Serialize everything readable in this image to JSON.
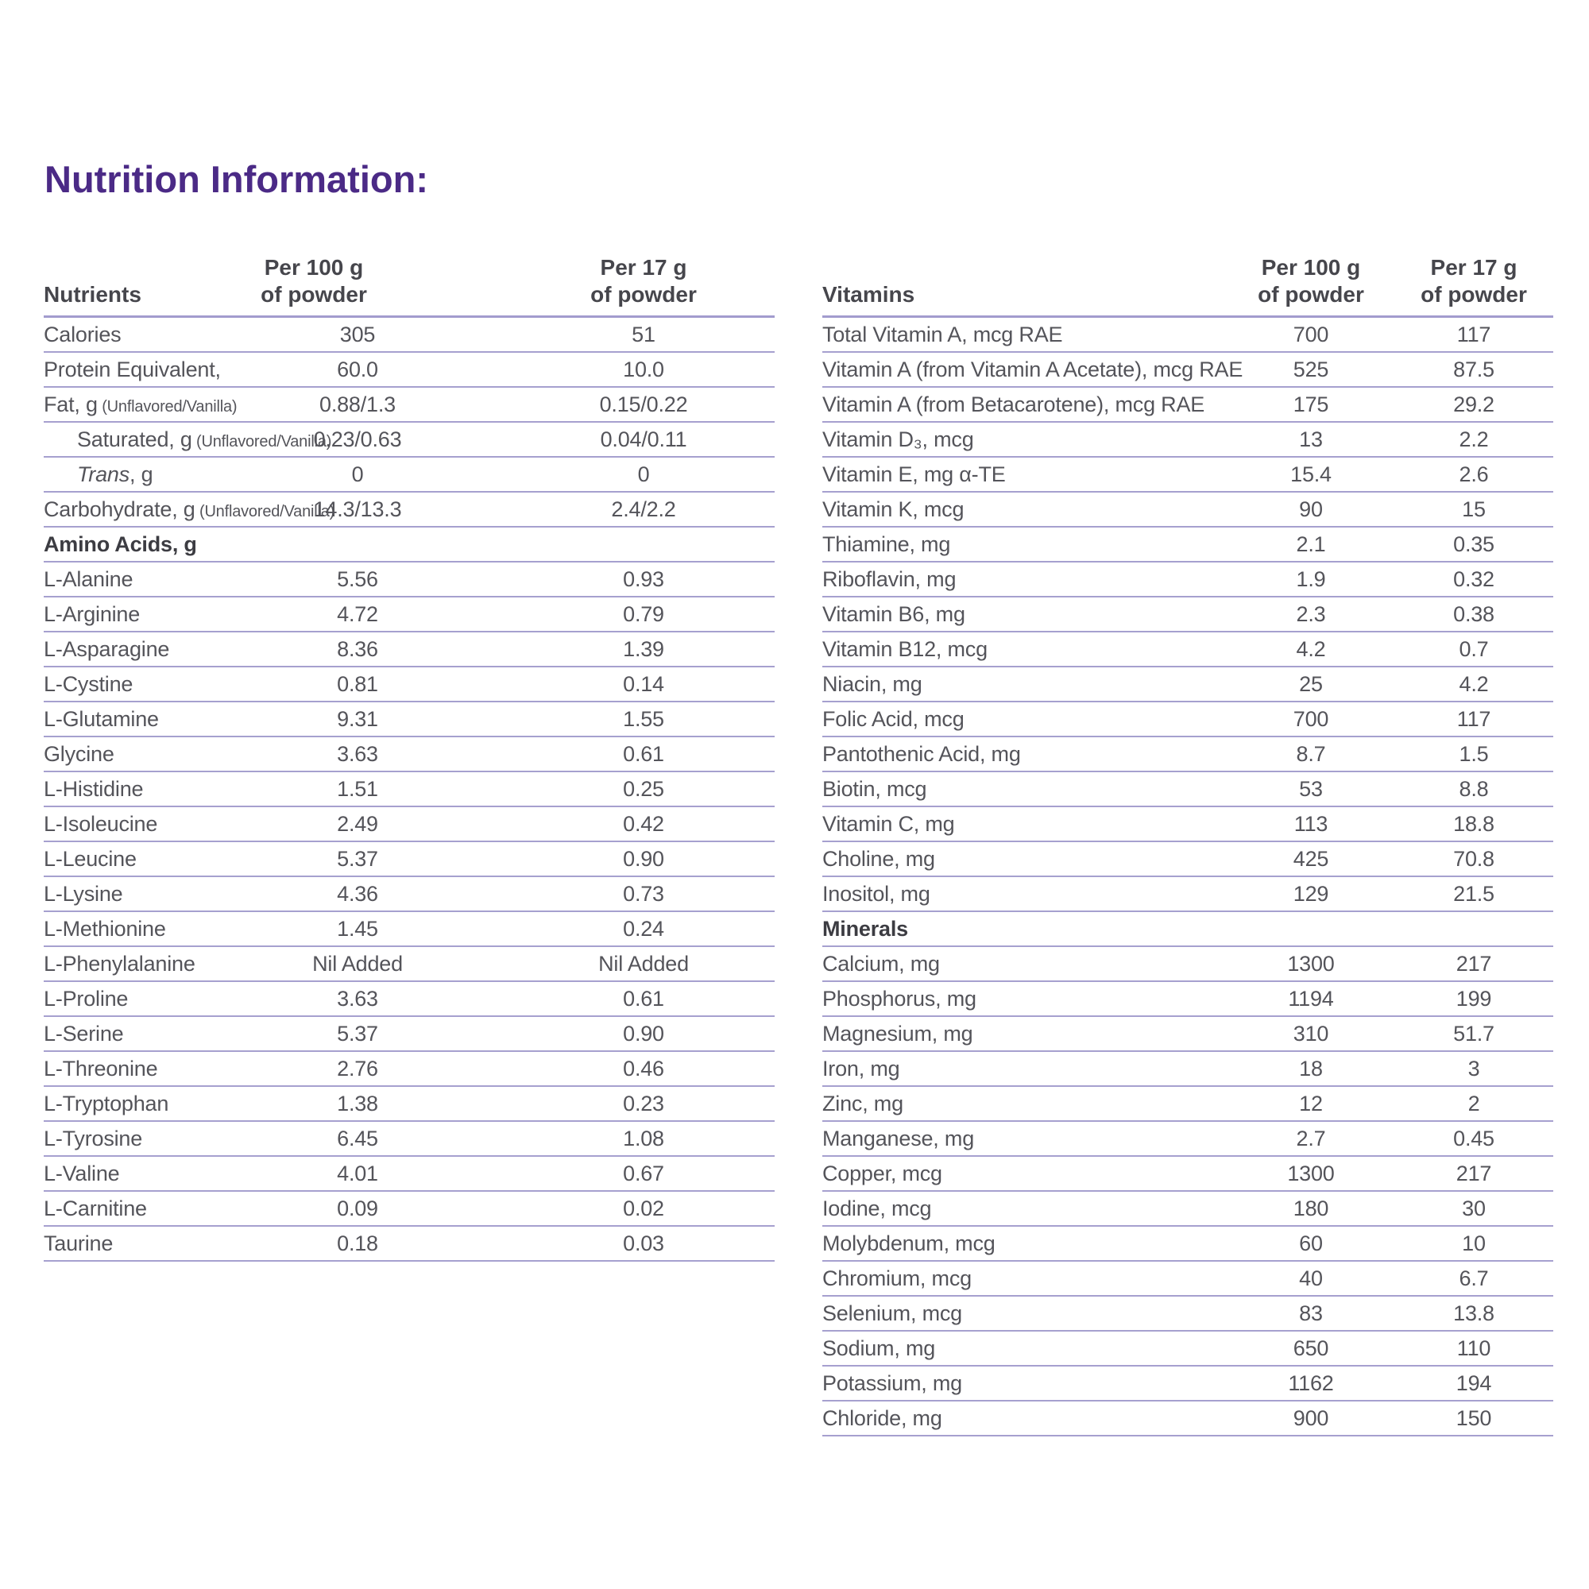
{
  "title": "Nutrition Information:",
  "colors": {
    "title_purple": "#4B2A86",
    "rule_lavender": "#A6A0CF",
    "body_text": "#54545A"
  },
  "columns": {
    "per100_line1": "Per 100 g",
    "per100_line2": "of powder",
    "per17_line1": "Per 17 g",
    "per17_line2": "of powder"
  },
  "left_table": {
    "header": "Nutrients",
    "rows": [
      {
        "label": "Calories",
        "v100": "305",
        "v17": "51"
      },
      {
        "label": "Protein Equivalent,",
        "v100": "60.0",
        "v17": "10.0"
      },
      {
        "label": "Fat, g",
        "note": "(Unflavored/Vanilla)",
        "v100": "0.88/1.3",
        "v17": "0.15/0.22"
      },
      {
        "label": "Saturated, g",
        "note": "(Unflavored/Vanilla)",
        "indent": true,
        "v100": "0.23/0.63",
        "v17": "0.04/0.11"
      },
      {
        "label_i": "Trans",
        "label": ", g",
        "indent": true,
        "v100": "0",
        "v17": "0"
      },
      {
        "label": "Carbohydrate, g",
        "note": "(Unflavored/Vanilla)",
        "v100": "14.3/13.3",
        "v17": "2.4/2.2"
      },
      {
        "type": "section",
        "label": "Amino Acids, g"
      },
      {
        "label": "L-Alanine",
        "v100": "5.56",
        "v17": "0.93"
      },
      {
        "label": "L-Arginine",
        "v100": "4.72",
        "v17": "0.79"
      },
      {
        "label": "L-Asparagine",
        "v100": "8.36",
        "v17": "1.39"
      },
      {
        "label": "L-Cystine",
        "v100": "0.81",
        "v17": "0.14"
      },
      {
        "label": "L-Glutamine",
        "v100": "9.31",
        "v17": "1.55"
      },
      {
        "label": "Glycine",
        "v100": "3.63",
        "v17": "0.61"
      },
      {
        "label": "L-Histidine",
        "v100": "1.51",
        "v17": "0.25"
      },
      {
        "label": "L-Isoleucine",
        "v100": "2.49",
        "v17": "0.42"
      },
      {
        "label": "L-Leucine",
        "v100": "5.37",
        "v17": "0.90"
      },
      {
        "label": "L-Lysine",
        "v100": "4.36",
        "v17": "0.73"
      },
      {
        "label": "L-Methionine",
        "v100": "1.45",
        "v17": "0.24"
      },
      {
        "label": "L-Phenylalanine",
        "v100": "Nil Added",
        "v17": "Nil Added"
      },
      {
        "label": "L-Proline",
        "v100": "3.63",
        "v17": "0.61"
      },
      {
        "label": "L-Serine",
        "v100": "5.37",
        "v17": "0.90"
      },
      {
        "label": "L-Threonine",
        "v100": "2.76",
        "v17": "0.46"
      },
      {
        "label": "L-Tryptophan",
        "v100": "1.38",
        "v17": "0.23"
      },
      {
        "label": "L-Tyrosine",
        "v100": "6.45",
        "v17": "1.08"
      },
      {
        "label": "L-Valine",
        "v100": "4.01",
        "v17": "0.67"
      },
      {
        "label": "L-Carnitine",
        "v100": "0.09",
        "v17": "0.02"
      },
      {
        "label": "Taurine",
        "v100": "0.18",
        "v17": "0.03"
      }
    ]
  },
  "right_table": {
    "header": "Vitamins",
    "rows": [
      {
        "label": "Total Vitamin A, mcg RAE",
        "v100": "700",
        "v17": "117"
      },
      {
        "label": "Vitamin A (from Vitamin A Acetate), mcg RAE",
        "v100": "525",
        "v17": "87.5"
      },
      {
        "label": "Vitamin A (from Betacarotene), mcg RAE",
        "v100": "175",
        "v17": "29.2"
      },
      {
        "label": "Vitamin D₃, mcg",
        "v100": "13",
        "v17": "2.2"
      },
      {
        "label": "Vitamin E, mg α-TE",
        "v100": "15.4",
        "v17": "2.6"
      },
      {
        "label": "Vitamin K, mcg",
        "v100": "90",
        "v17": "15"
      },
      {
        "label": "Thiamine, mg",
        "v100": "2.1",
        "v17": "0.35"
      },
      {
        "label": "Riboflavin, mg",
        "v100": "1.9",
        "v17": "0.32"
      },
      {
        "label": "Vitamin B6, mg",
        "v100": "2.3",
        "v17": "0.38"
      },
      {
        "label": "Vitamin B12, mcg",
        "v100": "4.2",
        "v17": "0.7"
      },
      {
        "label": "Niacin, mg",
        "v100": "25",
        "v17": "4.2"
      },
      {
        "label": "Folic Acid, mcg",
        "v100": "700",
        "v17": "117"
      },
      {
        "label": "Pantothenic Acid, mg",
        "v100": "8.7",
        "v17": "1.5"
      },
      {
        "label": "Biotin, mcg",
        "v100": "53",
        "v17": "8.8"
      },
      {
        "label": "Vitamin C, mg",
        "v100": "113",
        "v17": "18.8"
      },
      {
        "label": "Choline, mg",
        "v100": "425",
        "v17": "70.8"
      },
      {
        "label": "Inositol, mg",
        "v100": "129",
        "v17": "21.5"
      },
      {
        "type": "section",
        "label": "Minerals"
      },
      {
        "label": "Calcium, mg",
        "v100": "1300",
        "v17": "217"
      },
      {
        "label": "Phosphorus, mg",
        "v100": "1194",
        "v17": "199"
      },
      {
        "label": "Magnesium, mg",
        "v100": "310",
        "v17": "51.7"
      },
      {
        "label": "Iron, mg",
        "v100": "18",
        "v17": "3"
      },
      {
        "label": "Zinc, mg",
        "v100": "12",
        "v17": "2"
      },
      {
        "label": "Manganese, mg",
        "v100": "2.7",
        "v17": "0.45"
      },
      {
        "label": "Copper, mcg",
        "v100": "1300",
        "v17": "217"
      },
      {
        "label": "Iodine, mcg",
        "v100": "180",
        "v17": "30"
      },
      {
        "label": "Molybdenum, mcg",
        "v100": "60",
        "v17": "10"
      },
      {
        "label": "Chromium, mcg",
        "v100": "40",
        "v17": "6.7"
      },
      {
        "label": "Selenium, mcg",
        "v100": "83",
        "v17": "13.8"
      },
      {
        "label": "Sodium, mg",
        "v100": "650",
        "v17": "110"
      },
      {
        "label": "Potassium, mg",
        "v100": "1162",
        "v17": "194"
      },
      {
        "label": "Chloride, mg",
        "v100": "900",
        "v17": "150"
      }
    ]
  }
}
